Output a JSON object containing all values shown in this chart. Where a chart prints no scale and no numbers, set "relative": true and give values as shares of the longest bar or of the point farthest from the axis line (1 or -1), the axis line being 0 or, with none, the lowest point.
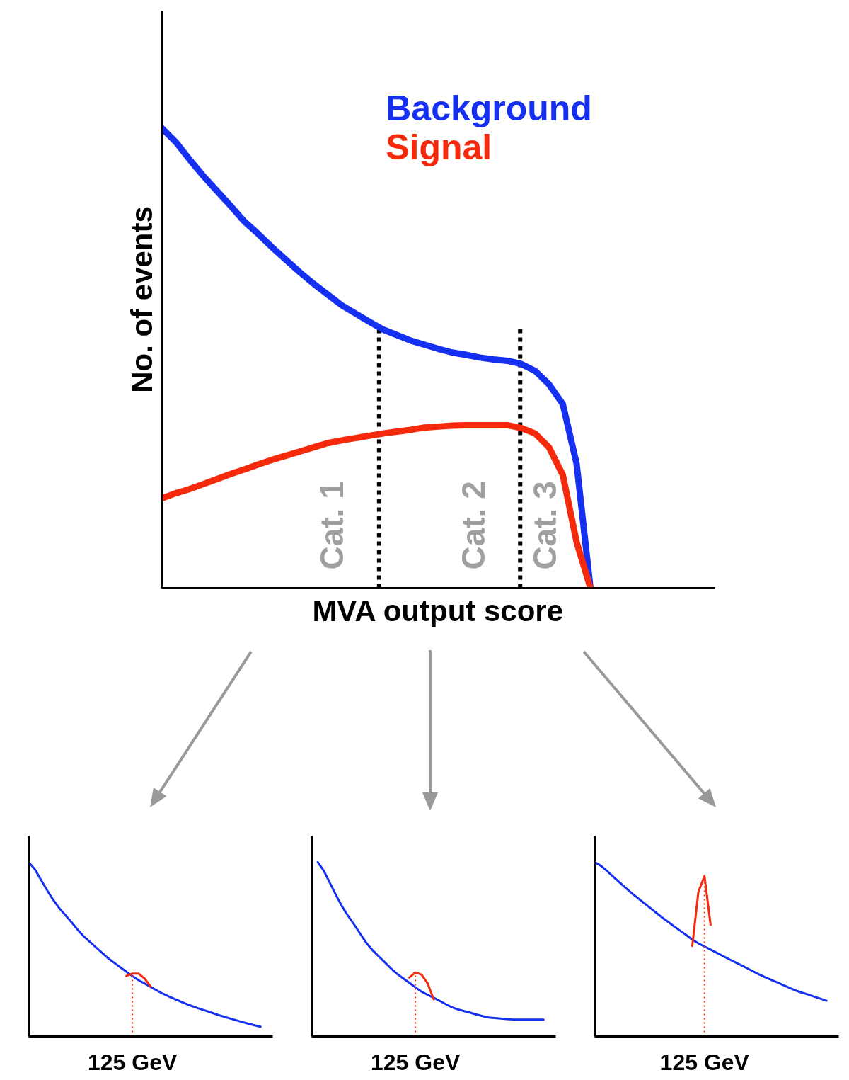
{
  "chart_data": [
    {
      "type": "line",
      "relative": true,
      "xlabel": "MVA output score",
      "ylabel": "No. of events",
      "line_style": "solid",
      "categories": [
        null,
        null,
        null,
        null,
        null,
        null,
        null,
        null,
        null,
        null,
        null,
        null,
        null,
        null,
        null,
        null,
        null,
        null,
        null,
        null,
        null,
        null,
        null,
        null,
        null,
        null,
        null,
        null,
        null,
        null,
        null,
        null
      ],
      "series": [
        {
          "name": "Background",
          "color": "#1530f0",
          "values": [
            1,
            0.97,
            0.932,
            0.896,
            0.863,
            0.83,
            0.796,
            0.769,
            0.74,
            0.713,
            0.686,
            0.661,
            0.638,
            0.615,
            0.597,
            0.579,
            0.562,
            0.55,
            0.538,
            0.529,
            0.52,
            0.512,
            0.507,
            0.501,
            0.497,
            0.494,
            0.487,
            0.472,
            0.443,
            0.4,
            0.27,
            0
          ]
        },
        {
          "name": "Signal",
          "color": "#f52a0c",
          "values": [
            0.195,
            0.206,
            0.215,
            0.226,
            0.237,
            0.248,
            0.258,
            0.269,
            0.279,
            0.288,
            0.297,
            0.306,
            0.315,
            0.321,
            0.326,
            0.331,
            0.336,
            0.34,
            0.344,
            0.349,
            0.351,
            0.353,
            0.354,
            0.354,
            0.354,
            0.354,
            0.348,
            0.336,
            0.306,
            0.246,
            0.1,
            0
          ]
        }
      ],
      "annotations": [
        "Cat. 1",
        "Cat. 2",
        "Cat. 3"
      ]
    },
    {
      "type": "line",
      "relative": true,
      "line_style": "solid",
      "categories": [
        null,
        null,
        null,
        null,
        null,
        null,
        null,
        null,
        null,
        null,
        null,
        null,
        null,
        null,
        null,
        null,
        null,
        null,
        null,
        null,
        null,
        null,
        null,
        null,
        null,
        null,
        null,
        null,
        null,
        null,
        null,
        null,
        null,
        null,
        null,
        null,
        null,
        null,
        null
      ],
      "series": [
        {
          "color": "#1530f0",
          "values": [
            1,
            0.96,
            0.9,
            0.84,
            0.785,
            0.737,
            0.697,
            0.656,
            0.614,
            0.575,
            0.544,
            0.512,
            0.481,
            0.449,
            0.423,
            0.397,
            0.372,
            0.346,
            0.323,
            0.304,
            0.284,
            0.264,
            0.245,
            0.229,
            0.214,
            0.199,
            0.184,
            0.171,
            0.159,
            0.148,
            0.136,
            0.124,
            0.113,
            0.103,
            0.093,
            0.083,
            0.073,
            0.064,
            0.056
          ]
        },
        {
          "color": "#f52a0c",
          "values": [
            null,
            null,
            null,
            null,
            null,
            null,
            null,
            null,
            null,
            null,
            null,
            null,
            null,
            null,
            null,
            null,
            0.347,
            0.361,
            0.361,
            0.333,
            0.286,
            null,
            null,
            null,
            null,
            null,
            null,
            null,
            null,
            null,
            null,
            null,
            null,
            null,
            null,
            null,
            null,
            null,
            null
          ]
        }
      ],
      "annotations": [
        "125 GeV"
      ]
    },
    {
      "type": "line",
      "relative": true,
      "line_style": "solid",
      "categories": [
        null,
        null,
        null,
        null,
        null,
        null,
        null,
        null,
        null,
        null,
        null,
        null,
        null,
        null,
        null,
        null,
        null,
        null,
        null,
        null,
        null,
        null,
        null,
        null,
        null,
        null,
        null,
        null,
        null,
        null,
        null,
        null,
        null,
        null,
        null,
        null,
        null,
        null,
        null
      ],
      "series": [
        {
          "color": "#1530f0",
          "values": [
            null,
            1,
            0.95,
            0.88,
            0.81,
            0.745,
            0.69,
            0.64,
            0.587,
            0.535,
            0.494,
            0.459,
            0.425,
            0.39,
            0.359,
            0.333,
            0.308,
            0.282,
            0.257,
            0.239,
            0.222,
            0.204,
            0.185,
            0.167,
            0.155,
            0.145,
            0.136,
            0.126,
            0.117,
            0.109,
            0.106,
            0.103,
            0.1,
            0.097,
            0.097,
            0.097,
            0.097,
            0.097,
            0.097
          ]
        },
        {
          "color": "#f52a0c",
          "values": [
            null,
            null,
            null,
            null,
            null,
            null,
            null,
            null,
            null,
            null,
            null,
            null,
            null,
            null,
            null,
            null,
            0.338,
            0.367,
            0.355,
            0.305,
            0.213,
            null,
            null,
            null,
            null,
            null,
            null,
            null,
            null,
            null,
            null,
            null,
            null,
            null,
            null,
            null,
            null,
            null,
            null
          ]
        }
      ],
      "annotations": [
        "125 GeV"
      ]
    },
    {
      "type": "line",
      "relative": true,
      "line_style": "solid",
      "categories": [
        null,
        null,
        null,
        null,
        null,
        null,
        null,
        null,
        null,
        null,
        null,
        null,
        null,
        null,
        null,
        null,
        null,
        null,
        null,
        null,
        null,
        null,
        null,
        null,
        null,
        null,
        null,
        null,
        null,
        null,
        null,
        null,
        null,
        null,
        null,
        null,
        null,
        null,
        null
      ],
      "series": [
        {
          "color": "#1530f0",
          "values": [
            1,
            0.98,
            0.95,
            0.918,
            0.886,
            0.855,
            0.824,
            0.796,
            0.768,
            0.74,
            0.712,
            0.684,
            0.658,
            0.632,
            0.607,
            0.582,
            0.556,
            0.534,
            0.516,
            0.498,
            0.48,
            0.462,
            0.444,
            0.426,
            0.409,
            0.391,
            0.373,
            0.355,
            0.339,
            0.324,
            0.309,
            0.293,
            0.278,
            0.263,
            0.251,
            0.24,
            0.228,
            0.217,
            0.205
          ]
        },
        {
          "color": "#f52a0c",
          "values": [
            null,
            null,
            null,
            null,
            null,
            null,
            null,
            null,
            null,
            null,
            null,
            null,
            null,
            null,
            null,
            null,
            0.52,
            0.83,
            0.92,
            0.64,
            null,
            null,
            null,
            null,
            null,
            null,
            null,
            null,
            null,
            null,
            null,
            null,
            null,
            null,
            null,
            null,
            null,
            null,
            null
          ]
        }
      ],
      "annotations": [
        "125 GeV"
      ]
    }
  ]
}
